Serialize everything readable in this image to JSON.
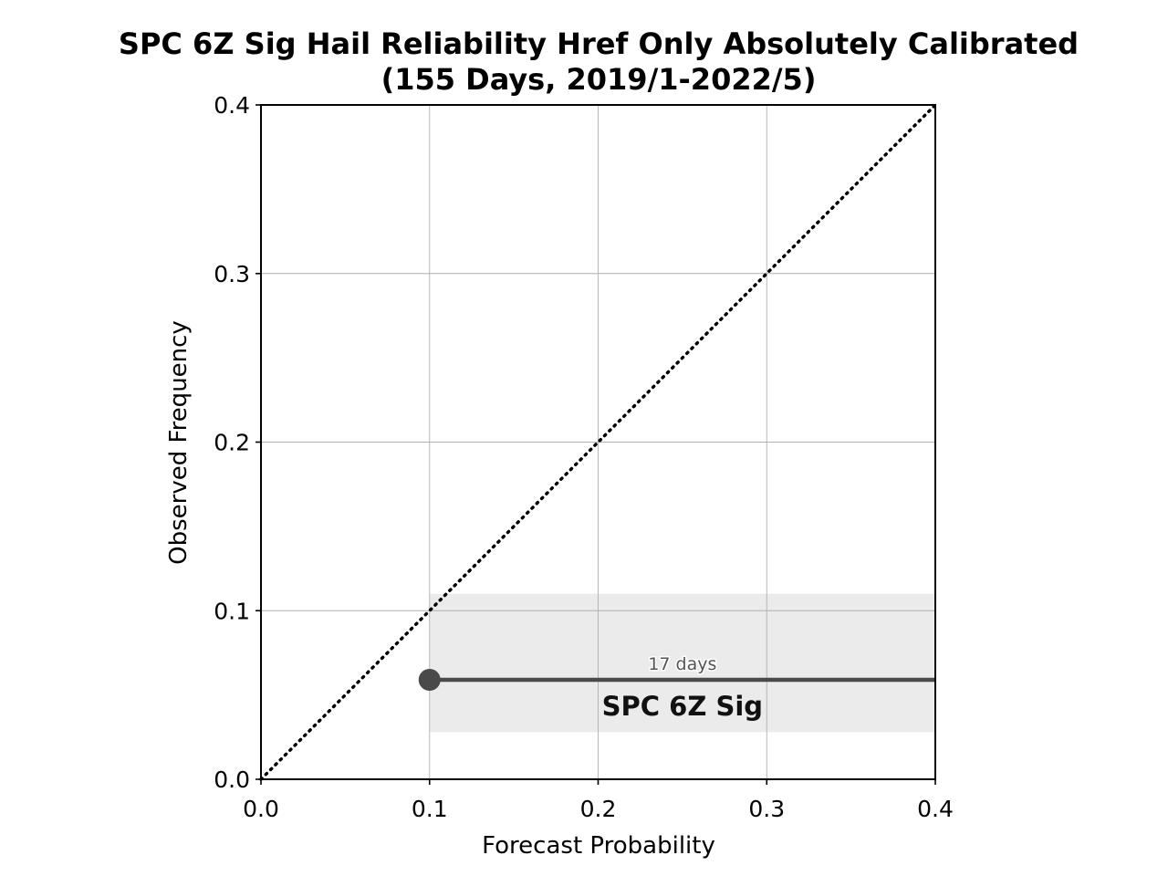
{
  "chart_data": {
    "type": "line",
    "title_line1": "SPC 6Z Sig Hail Reliability Href Only Absolutely Calibrated",
    "title_line2": "(155 Days, 2019/1-2022/5)",
    "xlabel": "Forecast Probability",
    "ylabel": "Observed Frequency",
    "xlim": [
      0.0,
      0.4
    ],
    "ylim": [
      0.0,
      0.4
    ],
    "xticks": [
      "0.0",
      "0.1",
      "0.2",
      "0.3",
      "0.4"
    ],
    "yticks": [
      "0.0",
      "0.1",
      "0.2",
      "0.3",
      "0.4"
    ],
    "grid": true,
    "reference_line": {
      "style": "dotted",
      "from": [
        0.0,
        0.0
      ],
      "to": [
        0.4,
        0.4
      ]
    },
    "series": [
      {
        "name": "SPC 6Z Sig",
        "points": [
          {
            "x": 0.1,
            "y": 0.059,
            "label": "17 days"
          }
        ],
        "line_to_x": 0.4,
        "band": {
          "x_from": 0.1,
          "x_to": 0.4,
          "y_low": 0.028,
          "y_high": 0.11
        },
        "color": "#4a4a4a",
        "band_color": "#ebebeb"
      }
    ],
    "colors": {
      "grid": "#b0b0b0",
      "axis": "#000000",
      "reference": "#000000"
    }
  }
}
